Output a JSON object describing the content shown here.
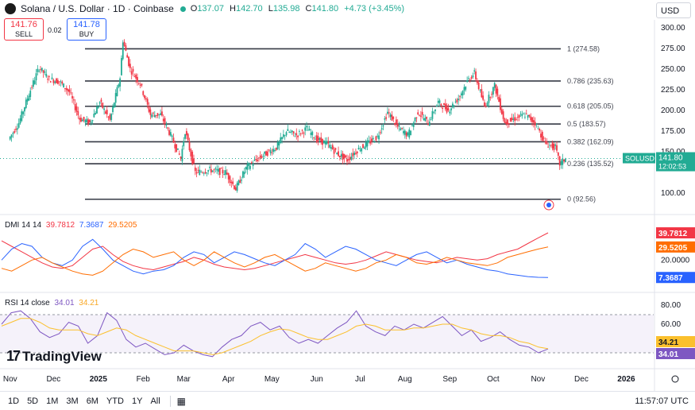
{
  "header": {
    "symbol": "Solana / U.S. Dollar · 1D · Coinbase",
    "open_label": "O",
    "open": "137.07",
    "high_label": "H",
    "high": "142.70",
    "low_label": "L",
    "low": "135.98",
    "close_label": "C",
    "close": "141.80",
    "change": "+4.73 (+3.45%)"
  },
  "trade": {
    "sell_price": "141.76",
    "sell_label": "SELL",
    "spread": "0.02",
    "buy_price": "141.78",
    "buy_label": "BUY"
  },
  "currency": "USD",
  "colors": {
    "up": "#22ab94",
    "down": "#f23645",
    "fib": "#363a45",
    "price_label": "#22ab94",
    "dmi_adx": "#f23645",
    "dmi_plus": "#2962ff",
    "dmi_minus": "#ff6d00",
    "rsi": "#7e57c2",
    "rsi_ma": "#fbc02d"
  },
  "chart_data": [
    {
      "type": "candlestick",
      "title": "Solana / U.S. Dollar · 1D · Coinbase",
      "ylim": [
        95,
        305
      ],
      "y_ticks": [
        "300.00",
        "275.00",
        "250.00",
        "225.00",
        "200.00",
        "175.00",
        "150.00",
        "100.00"
      ],
      "x_ticks": [
        "Nov",
        "Dec",
        "2025",
        "Feb",
        "Mar",
        "Apr",
        "May",
        "Jun",
        "Jul",
        "Aug",
        "Sep",
        "Oct",
        "Nov",
        "Dec",
        "2026"
      ],
      "fib_levels": [
        {
          "label": "1 (274.58)",
          "value": 274.58
        },
        {
          "label": "0.786 (235.63)",
          "value": 235.63
        },
        {
          "label": "0.618 (205.05)",
          "value": 205.05
        },
        {
          "label": "0.5 (183.57)",
          "value": 183.57
        },
        {
          "label": "0.382 (162.09)",
          "value": 162.09
        },
        {
          "label": "0.236 (135.52)",
          "value": 135.52
        },
        {
          "label": "0 (92.56)",
          "value": 92.56
        }
      ],
      "last_price": {
        "symbol": "SOLUSD",
        "value": 141.8,
        "display": "141.80",
        "countdown": "12:02:53"
      },
      "price_path": [
        [
          "2024-11-01",
          165
        ],
        [
          "2024-11-08",
          185
        ],
        [
          "2024-11-15",
          220
        ],
        [
          "2024-11-22",
          252
        ],
        [
          "2024-11-29",
          238
        ],
        [
          "2024-12-06",
          235
        ],
        [
          "2024-12-13",
          222
        ],
        [
          "2024-12-20",
          190
        ],
        [
          "2024-12-27",
          185
        ],
        [
          "2025-01-03",
          210
        ],
        [
          "2025-01-10",
          188
        ],
        [
          "2025-01-17",
          240
        ],
        [
          "2025-01-19",
          285
        ],
        [
          "2025-01-24",
          250
        ],
        [
          "2025-01-31",
          232
        ],
        [
          "2025-02-07",
          195
        ],
        [
          "2025-02-14",
          195
        ],
        [
          "2025-02-21",
          170
        ],
        [
          "2025-02-28",
          142
        ],
        [
          "2025-03-03",
          175
        ],
        [
          "2025-03-10",
          125
        ],
        [
          "2025-03-20",
          128
        ],
        [
          "2025-03-31",
          125
        ],
        [
          "2025-04-07",
          105
        ],
        [
          "2025-04-14",
          130
        ],
        [
          "2025-04-21",
          140
        ],
        [
          "2025-04-28",
          148
        ],
        [
          "2025-05-05",
          155
        ],
        [
          "2025-05-12",
          175
        ],
        [
          "2025-05-19",
          170
        ],
        [
          "2025-05-26",
          178
        ],
        [
          "2025-06-02",
          165
        ],
        [
          "2025-06-09",
          160
        ],
        [
          "2025-06-16",
          148
        ],
        [
          "2025-06-23",
          140
        ],
        [
          "2025-06-30",
          152
        ],
        [
          "2025-07-07",
          160
        ],
        [
          "2025-07-14",
          168
        ],
        [
          "2025-07-21",
          198
        ],
        [
          "2025-07-28",
          180
        ],
        [
          "2025-08-04",
          170
        ],
        [
          "2025-08-11",
          198
        ],
        [
          "2025-08-18",
          185
        ],
        [
          "2025-08-25",
          210
        ],
        [
          "2025-09-01",
          200
        ],
        [
          "2025-09-08",
          215
        ],
        [
          "2025-09-15",
          238
        ],
        [
          "2025-09-19",
          245
        ],
        [
          "2025-09-26",
          205
        ],
        [
          "2025-10-03",
          230
        ],
        [
          "2025-10-10",
          185
        ],
        [
          "2025-10-17",
          190
        ],
        [
          "2025-10-24",
          195
        ],
        [
          "2025-10-31",
          185
        ],
        [
          "2025-11-07",
          160
        ],
        [
          "2025-11-14",
          155
        ],
        [
          "2025-11-17",
          135
        ],
        [
          "2025-11-21",
          141.8
        ]
      ]
    },
    {
      "type": "line",
      "title": "DMI 14 14",
      "y_ticks": [
        "20.0000"
      ],
      "series": [
        {
          "name": "ADX",
          "last": "39.7812",
          "values": [
            34,
            30,
            26,
            22,
            18,
            15,
            14,
            16,
            22,
            28,
            30,
            24,
            19,
            16,
            14,
            13,
            15,
            17,
            19,
            22,
            20,
            17,
            15,
            14,
            13,
            14,
            16,
            18,
            20,
            22,
            24,
            22,
            20,
            18,
            17,
            18,
            20,
            23,
            26,
            24,
            22,
            20,
            19,
            18,
            20,
            22,
            21,
            20,
            21,
            24,
            26,
            28,
            32,
            36,
            39.78
          ]
        },
        {
          "name": "+DI",
          "last": "7.3687",
          "values": [
            20,
            28,
            32,
            30,
            22,
            18,
            16,
            20,
            30,
            35,
            28,
            20,
            16,
            12,
            10,
            12,
            13,
            16,
            22,
            26,
            24,
            18,
            22,
            26,
            24,
            21,
            18,
            16,
            20,
            24,
            32,
            28,
            22,
            26,
            30,
            28,
            24,
            20,
            18,
            16,
            20,
            24,
            26,
            22,
            18,
            20,
            17,
            15,
            13,
            12,
            10,
            9,
            8,
            7.5,
            7.37
          ]
        },
        {
          "name": "-DI",
          "last": "29.5205",
          "values": [
            14,
            12,
            16,
            20,
            22,
            18,
            15,
            12,
            10,
            9,
            12,
            18,
            24,
            28,
            26,
            22,
            24,
            26,
            20,
            16,
            20,
            26,
            22,
            18,
            15,
            18,
            22,
            24,
            20,
            16,
            12,
            14,
            18,
            16,
            14,
            12,
            14,
            18,
            20,
            24,
            22,
            18,
            17,
            19,
            22,
            20,
            18,
            17,
            16,
            18,
            22,
            24,
            26,
            28,
            29.52
          ]
        }
      ]
    },
    {
      "type": "line",
      "title": "RSI 14 close",
      "y_ticks": [
        "80.00",
        "60.00"
      ],
      "band": [
        30,
        70
      ],
      "series": [
        {
          "name": "RSI",
          "last": "34.01",
          "values": [
            60,
            72,
            74,
            66,
            52,
            46,
            50,
            62,
            58,
            40,
            48,
            72,
            64,
            44,
            36,
            40,
            34,
            28,
            30,
            38,
            32,
            28,
            26,
            36,
            44,
            48,
            58,
            62,
            54,
            58,
            46,
            40,
            44,
            40,
            48,
            56,
            62,
            74,
            58,
            52,
            48,
            58,
            54,
            60,
            56,
            62,
            68,
            58,
            48,
            54,
            42,
            46,
            52,
            44,
            38,
            36,
            30,
            34.01
          ]
        },
        {
          "name": "RSI MA",
          "last": "34.21",
          "values": [
            58,
            62,
            66,
            66,
            62,
            56,
            54,
            54,
            54,
            50,
            48,
            52,
            56,
            54,
            48,
            44,
            40,
            36,
            32,
            32,
            32,
            30,
            28,
            30,
            34,
            38,
            42,
            48,
            52,
            55,
            54,
            50,
            46,
            44,
            44,
            48,
            52,
            58,
            60,
            58,
            54,
            54,
            54,
            56,
            56,
            58,
            60,
            60,
            56,
            54,
            50,
            48,
            48,
            46,
            42,
            40,
            36,
            34.21
          ]
        }
      ]
    }
  ],
  "indicators": {
    "dmi_title": "DMI 14 14",
    "dmi_values": [
      "39.7812",
      "7.3687",
      "29.5205"
    ],
    "rsi_title": "RSI 14 close",
    "rsi_values": [
      "34.01",
      "34.21"
    ]
  },
  "branding": "TradingView",
  "bottom": {
    "timeframes": [
      "1D",
      "5D",
      "1M",
      "3M",
      "6M",
      "YTD",
      "1Y",
      "All"
    ],
    "time": "11:57:07 UTC"
  }
}
